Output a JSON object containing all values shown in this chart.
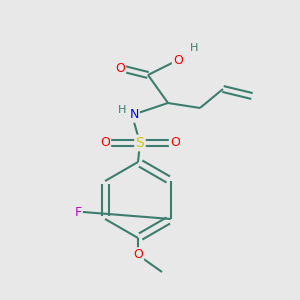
{
  "background_color": "#e8e8e8",
  "bond_color": "#3d7d6e",
  "bond_width": 1.5,
  "atom_colors": {
    "O": "#ff0000",
    "N": "#0000ff",
    "S": "#cccc00",
    "F": "#cc00cc",
    "H": "#3d7d6e",
    "C": "#3d7d6e"
  },
  "font_size": 9,
  "fig_size": [
    3.0,
    3.0
  ],
  "dpi": 100,
  "xlim": [
    0,
    300
  ],
  "ylim": [
    0,
    300
  ]
}
